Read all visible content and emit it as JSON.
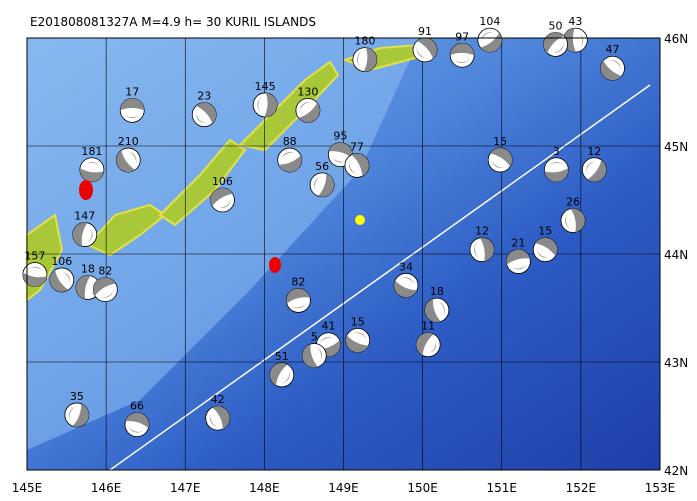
{
  "title": "E201808081327A M=4.9 h= 30 KURIL ISLANDS",
  "map": {
    "lon_ticks": [
      {
        "value": 145,
        "label": "145E"
      },
      {
        "value": 146,
        "label": "146E"
      },
      {
        "value": 147,
        "label": "147E"
      },
      {
        "value": 148,
        "label": "148E"
      },
      {
        "value": 149,
        "label": "149E"
      },
      {
        "value": 150,
        "label": "150E"
      },
      {
        "value": 151,
        "label": "151E"
      },
      {
        "value": 152,
        "label": "152E"
      },
      {
        "value": 153,
        "label": "153E"
      }
    ],
    "lat_ticks": [
      {
        "value": 42,
        "label": "42N"
      },
      {
        "value": 43,
        "label": "43N"
      },
      {
        "value": 44,
        "label": "44N"
      },
      {
        "value": 45,
        "label": "45N"
      },
      {
        "value": 46,
        "label": "46N"
      }
    ],
    "events": [
      {
        "lon": 146.33,
        "lat": 45.33,
        "depth": 17
      },
      {
        "lon": 147.24,
        "lat": 45.29,
        "depth": 23
      },
      {
        "lon": 148.01,
        "lat": 45.38,
        "depth": 145
      },
      {
        "lon": 148.55,
        "lat": 45.33,
        "depth": 130
      },
      {
        "lon": 145.82,
        "lat": 44.78,
        "depth": 181
      },
      {
        "lon": 146.28,
        "lat": 44.87,
        "depth": 210
      },
      {
        "lon": 145.73,
        "lat": 44.18,
        "depth": 147
      },
      {
        "lon": 147.47,
        "lat": 44.5,
        "depth": 106
      },
      {
        "lon": 148.96,
        "lat": 44.92,
        "depth": 95
      },
      {
        "lon": 149.17,
        "lat": 44.82,
        "depth": 77
      },
      {
        "lon": 148.73,
        "lat": 44.64,
        "depth": 56
      },
      {
        "lon": 148.32,
        "lat": 44.87,
        "depth": 88
      },
      {
        "lon": 149.79,
        "lat": 43.71,
        "depth": 34
      },
      {
        "lon": 150.18,
        "lat": 43.48,
        "depth": 18
      },
      {
        "lon": 150.07,
        "lat": 43.16,
        "depth": 11
      },
      {
        "lon": 151.21,
        "lat": 43.93,
        "depth": 21
      },
      {
        "lon": 151.55,
        "lat": 44.04,
        "depth": 15
      },
      {
        "lon": 151.9,
        "lat": 44.31,
        "depth": 26
      },
      {
        "lon": 152.17,
        "lat": 44.78,
        "depth": 12
      },
      {
        "lon": 151.69,
        "lat": 44.78,
        "depth": 3
      },
      {
        "lon": 152.4,
        "lat": 45.72,
        "depth": 47
      },
      {
        "lon": 151.93,
        "lat": 45.98,
        "depth": 43
      },
      {
        "lon": 151.68,
        "lat": 45.94,
        "depth": 50
      },
      {
        "lon": 150.5,
        "lat": 45.84,
        "depth": 97
      },
      {
        "lon": 150.03,
        "lat": 45.89,
        "depth": 91
      },
      {
        "lon": 149.27,
        "lat": 45.8,
        "depth": 180
      },
      {
        "lon": 150.85,
        "lat": 45.98,
        "depth": 104
      },
      {
        "lon": 145.1,
        "lat": 43.81,
        "depth": 157
      },
      {
        "lon": 145.44,
        "lat": 43.76,
        "depth": 106
      },
      {
        "lon": 145.77,
        "lat": 43.69,
        "depth": 18
      },
      {
        "lon": 145.99,
        "lat": 43.67,
        "depth": 82
      },
      {
        "lon": 146.39,
        "lat": 42.42,
        "depth": 66
      },
      {
        "lon": 147.41,
        "lat": 42.48,
        "depth": 42
      },
      {
        "lon": 145.63,
        "lat": 42.51,
        "depth": 35
      },
      {
        "lon": 148.81,
        "lat": 43.16,
        "depth": 41
      },
      {
        "lon": 149.18,
        "lat": 43.2,
        "depth": 15
      },
      {
        "lon": 148.63,
        "lat": 43.06,
        "depth": 5
      },
      {
        "lon": 148.22,
        "lat": 42.88,
        "depth": 51
      },
      {
        "lon": 148.43,
        "lat": 43.57,
        "depth": 82
      },
      {
        "lon": 150.98,
        "lat": 44.87,
        "depth": 15
      },
      {
        "lon": 150.75,
        "lat": 44.04,
        "depth": 12
      }
    ]
  }
}
